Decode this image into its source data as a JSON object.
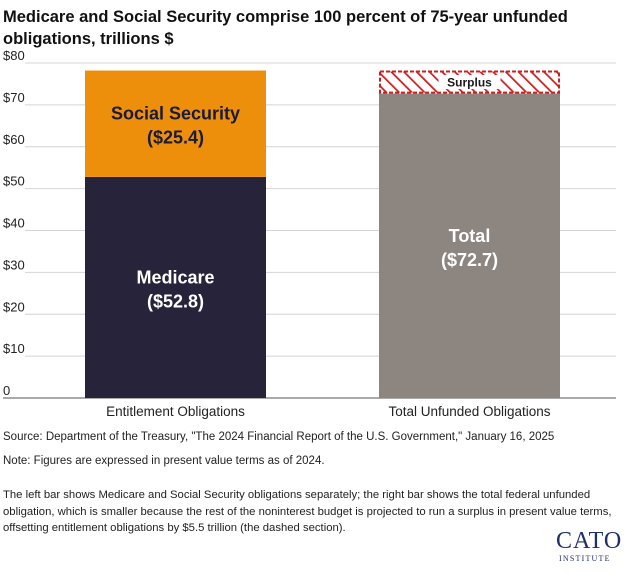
{
  "chart_data": {
    "type": "bar",
    "title": "Medicare and Social Security comprise 100 percent of 75-year unfunded obligations, trillions $",
    "categories": [
      "Entitlement Obligations",
      "Total Unfunded Obligations"
    ],
    "ylim": [
      0,
      80
    ],
    "yticks": [
      0,
      10,
      20,
      30,
      40,
      50,
      60,
      70,
      80
    ],
    "ytick_labels": [
      "0",
      "$10",
      "$20",
      "$30",
      "$40",
      "$50",
      "$60",
      "$70",
      "$80"
    ],
    "grid": true,
    "bars": [
      {
        "category": "Entitlement Obligations",
        "segments": [
          {
            "name": "Medicare",
            "value_label": "($52.8)",
            "value": 52.8,
            "color": "#27233b",
            "label_color": "#ffffff"
          },
          {
            "name": "Social Security",
            "value_label": "($25.4)",
            "value": 25.4,
            "color": "#ee8f0c",
            "label_color": "#1a1a3a"
          }
        ]
      },
      {
        "category": "Total Unfunded Obligations",
        "segments": [
          {
            "name": "Total",
            "value_label": "($72.7)",
            "value": 72.7,
            "color": "#8d8580",
            "label_color": "#ffffff"
          },
          {
            "name": "Surplus",
            "value_label": "",
            "value": 5.5,
            "style": "hatched",
            "color": "#cc1f1f",
            "label_color": "#1a1a1a"
          }
        ]
      }
    ]
  },
  "footer": {
    "source": "Source: Department of the Treasury, \"The 2024 Financial Report of the U.S. Government,\" January 16, 2025",
    "note": "Note: Figures are expressed in present value terms as of 2024.",
    "description": "The left bar shows Medicare and Social Security obligations separately; the right bar shows the total federal unfunded obligation, which is smaller because the rest of the noninterest budget is projected to run a surplus in present value terms, offsetting entitlement obligations by $5.5 trillion (the dashed section).",
    "logo_main": "CATO",
    "logo_sub": "INSTITUTE"
  }
}
